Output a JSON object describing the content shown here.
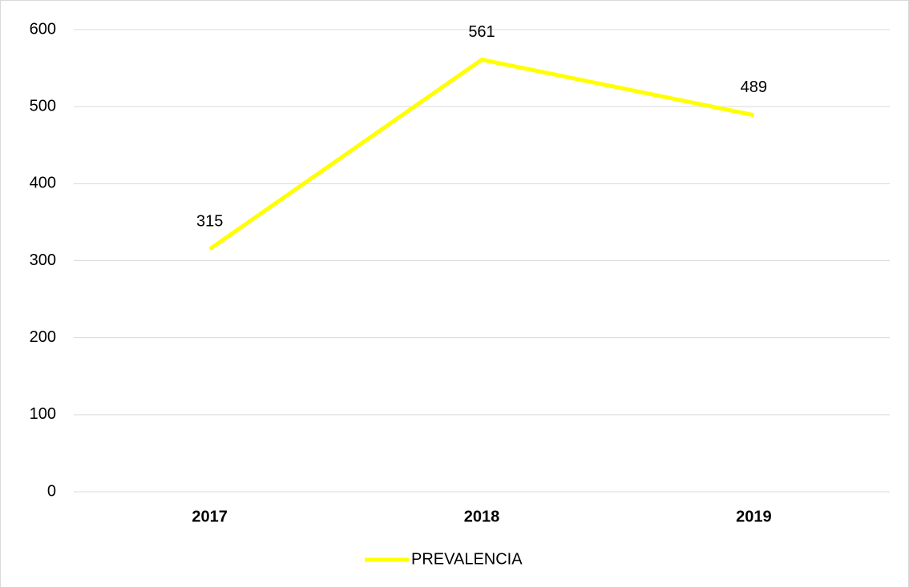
{
  "chart_data": {
    "type": "line",
    "categories": [
      "2017",
      "2018",
      "2019"
    ],
    "series": [
      {
        "name": "PREVALENCIA",
        "color": "#ffff00",
        "values": [
          315,
          561,
          489
        ]
      }
    ],
    "ylim": [
      0,
      600
    ],
    "yticks": [
      0,
      100,
      200,
      300,
      400,
      500,
      600
    ],
    "grid": true,
    "legend": "bottom",
    "data_labels": true
  }
}
